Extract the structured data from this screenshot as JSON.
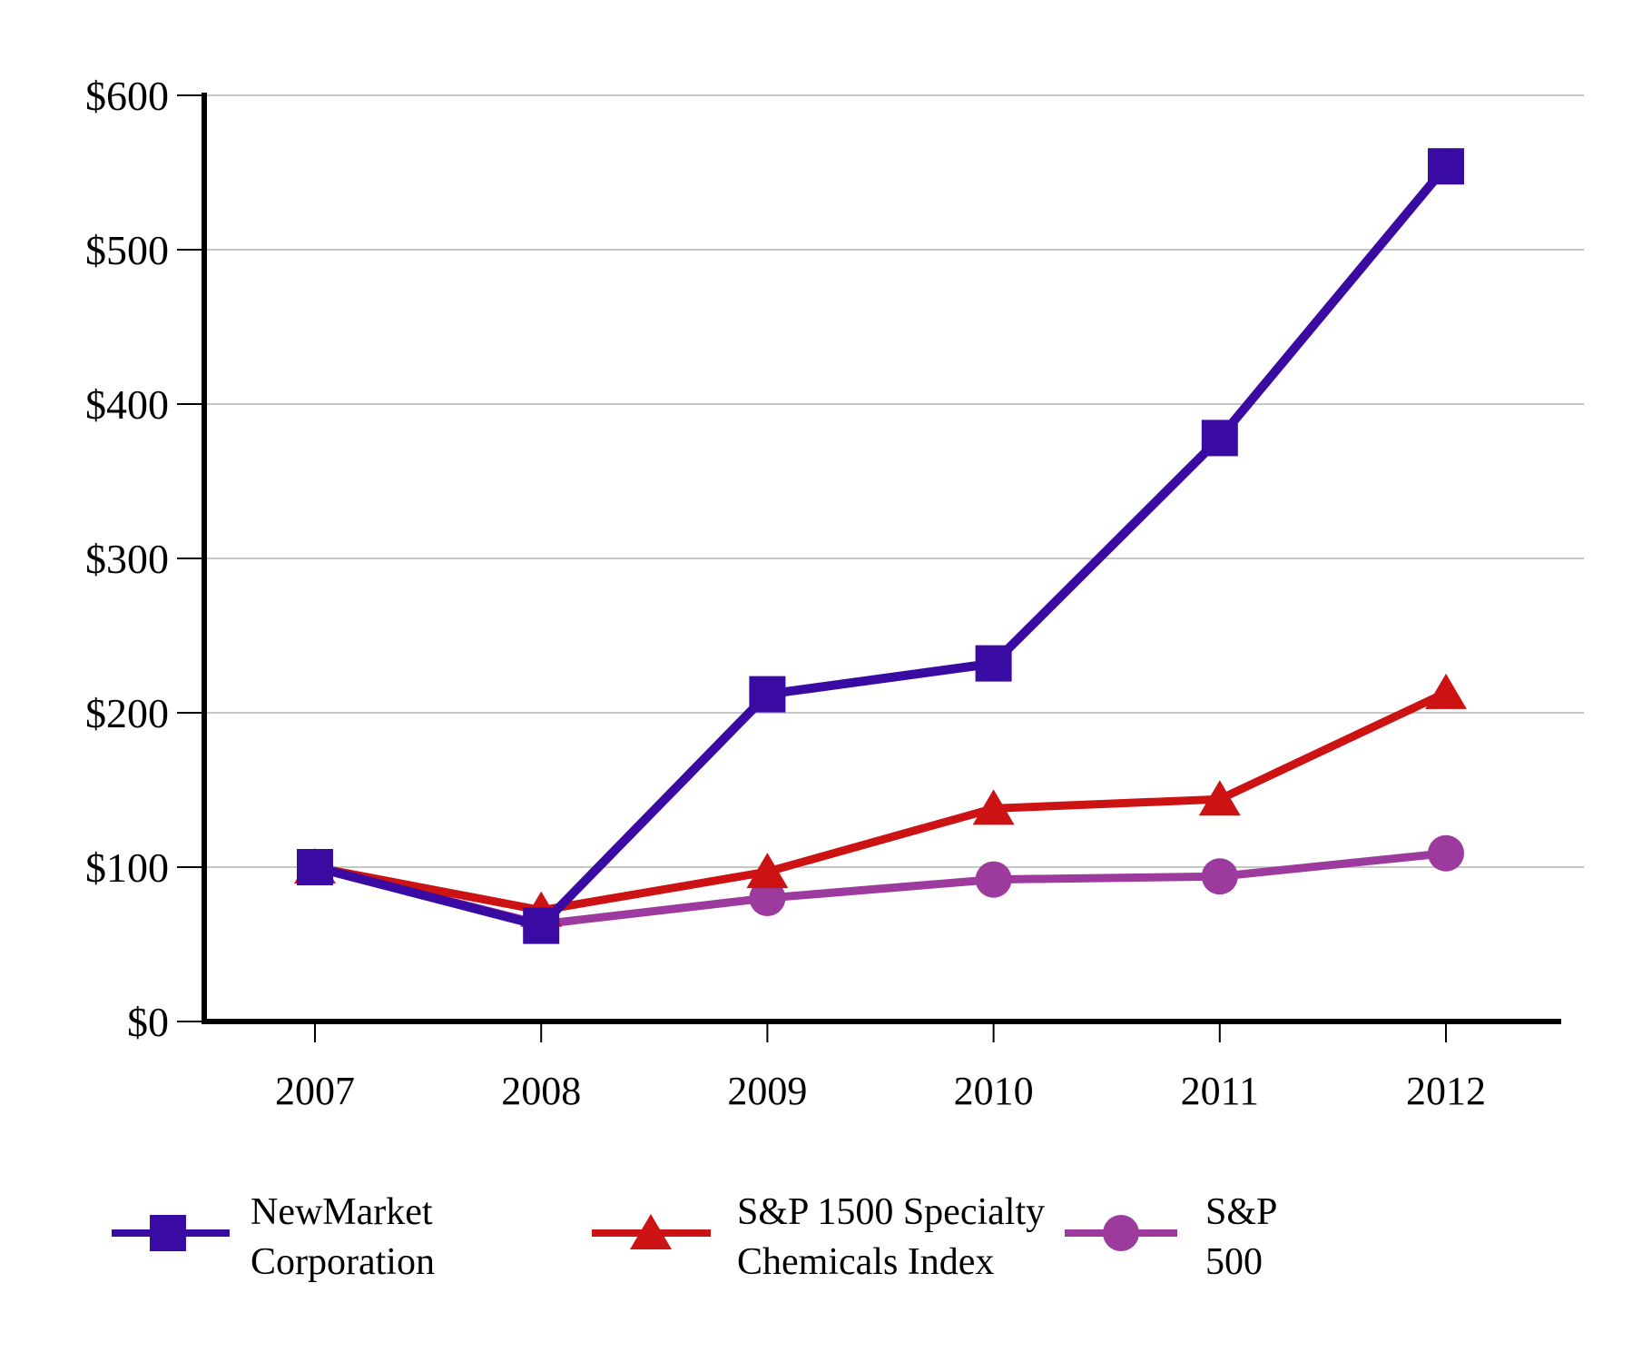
{
  "chart_data": {
    "type": "line",
    "title": "",
    "x": [
      2007,
      2008,
      2009,
      2010,
      2011,
      2012
    ],
    "x_tick_labels": [
      "2007",
      "2008",
      "2009",
      "2010",
      "2011",
      "2012"
    ],
    "y_tick_labels": [
      "$600",
      "$500",
      "$400",
      "$300",
      "$200",
      "$100",
      "$0"
    ],
    "y_tick_values": [
      600,
      500,
      400,
      300,
      200,
      100,
      0
    ],
    "ylim": [
      0,
      600
    ],
    "grid": true,
    "legend_position": "bottom",
    "series": [
      {
        "name": "NewMarket Corporation",
        "legend_lines": [
          "NewMarket",
          "Corporation"
        ],
        "marker": "square",
        "color": "#3A0BA3",
        "values": [
          100,
          62,
          212,
          232,
          378,
          554
        ]
      },
      {
        "name": "S&P 1500 Specialty Chemicals Index",
        "legend_lines": [
          "S&P 1500 Specialty",
          "Chemicals Index"
        ],
        "marker": "triangle",
        "color": "#CC1212",
        "values": [
          100,
          72,
          97,
          138,
          144,
          213
        ]
      },
      {
        "name": "S&P 500",
        "legend_lines": [
          "S&P",
          "500"
        ],
        "marker": "circle",
        "color": "#9C3A9E",
        "values": [
          100,
          63,
          80,
          92,
          94,
          109
        ]
      }
    ],
    "colors": {
      "background": "#FFFFFF",
      "gridline": "#C6C6C6",
      "axis": "#000000",
      "text": "#000000"
    }
  }
}
